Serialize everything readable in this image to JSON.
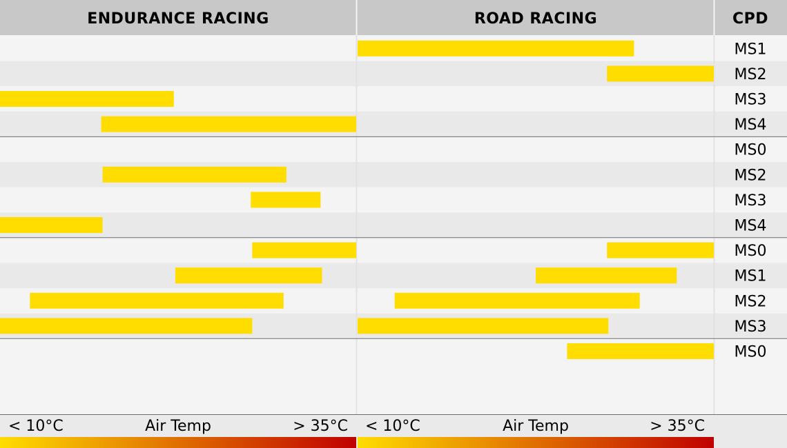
{
  "chart_data": {
    "type": "bar",
    "subtype": "horizontal-range",
    "columns": [
      "ENDURANCE RACING",
      "ROAD RACING"
    ],
    "category_header": "CPD",
    "axis": {
      "label": "Air Temp",
      "min_label": "< 10°C",
      "max_label": "> 35°C",
      "xlim": [
        10,
        35
      ],
      "unit": "°C",
      "gradient": [
        "#ffdd00",
        "#c00000"
      ]
    },
    "bar_color": "#ffdd00",
    "groups": [
      {
        "rows": [
          {
            "label": "MS1",
            "endurance": null,
            "road": [
              10.0,
              29.4
            ]
          },
          {
            "label": "MS2",
            "endurance": null,
            "road": [
              27.5,
              35.0
            ]
          },
          {
            "label": "MS3",
            "endurance": [
              10.0,
              22.2
            ],
            "road": null
          },
          {
            "label": "MS4",
            "endurance": [
              17.1,
              35.0
            ],
            "road": null
          }
        ]
      },
      {
        "rows": [
          {
            "label": "MS0",
            "endurance": null,
            "road": null
          },
          {
            "label": "MS2",
            "endurance": [
              17.2,
              30.1
            ],
            "road": null
          },
          {
            "label": "MS3",
            "endurance": [
              27.6,
              32.5
            ],
            "road": null
          },
          {
            "label": "MS4",
            "endurance": [
              10.0,
              17.2
            ],
            "road": null
          }
        ]
      },
      {
        "rows": [
          {
            "label": "MS0",
            "endurance": [
              27.7,
              35.0
            ],
            "road": [
              27.5,
              35.0
            ]
          },
          {
            "label": "MS1",
            "endurance": [
              22.3,
              32.6
            ],
            "road": [
              22.5,
              32.4
            ]
          },
          {
            "label": "MS2",
            "endurance": [
              12.1,
              29.9
            ],
            "road": [
              12.6,
              29.8
            ]
          },
          {
            "label": "MS3",
            "endurance": [
              10.0,
              27.7
            ],
            "road": [
              10.0,
              27.6
            ]
          }
        ]
      },
      {
        "rows": [
          {
            "label": "MS0",
            "endurance": null,
            "road": [
              24.7,
              35.0
            ]
          }
        ]
      }
    ]
  }
}
